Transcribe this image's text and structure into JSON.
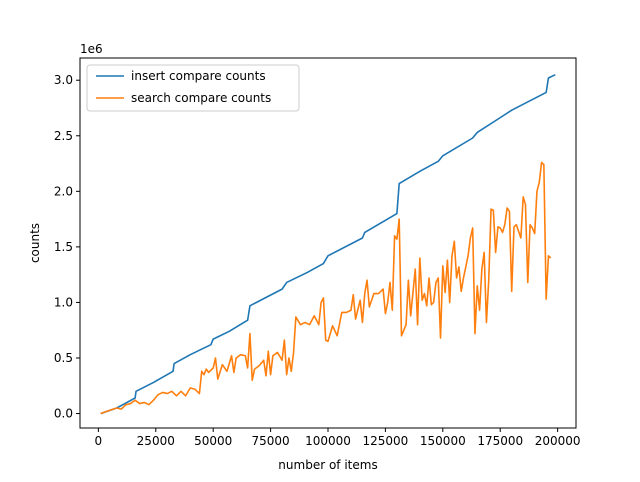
{
  "chart_data": {
    "type": "line",
    "xlabel": "number of items",
    "ylabel": "counts",
    "y_offset_label": "1e6",
    "xlim": [
      -8000,
      208000
    ],
    "ylim": [
      -0.13,
      3.2
    ],
    "x_ticks": [
      0,
      25000,
      50000,
      75000,
      100000,
      125000,
      150000,
      175000,
      200000
    ],
    "x_tick_labels": [
      "0",
      "25000",
      "50000",
      "75000",
      "100000",
      "125000",
      "150000",
      "175000",
      "200000"
    ],
    "y_ticks": [
      0.0,
      0.5,
      1.0,
      1.5,
      2.0,
      2.5,
      3.0
    ],
    "y_tick_labels": [
      "0.0",
      "0.5",
      "1.0",
      "1.5",
      "2.0",
      "2.5",
      "3.0"
    ],
    "legend_position": "top-left",
    "grid": false,
    "series": [
      {
        "name": "insert compare counts",
        "color": "#1f77b4",
        "points": [
          [
            1000,
            0.0
          ],
          [
            8000,
            0.05
          ],
          [
            16000,
            0.14
          ],
          [
            16400,
            0.2
          ],
          [
            24000,
            0.28
          ],
          [
            32500,
            0.38
          ],
          [
            33000,
            0.45
          ],
          [
            40000,
            0.53
          ],
          [
            49000,
            0.62
          ],
          [
            50000,
            0.67
          ],
          [
            57000,
            0.74
          ],
          [
            65000,
            0.84
          ],
          [
            66000,
            0.97
          ],
          [
            80000,
            1.12
          ],
          [
            82000,
            1.18
          ],
          [
            91000,
            1.27
          ],
          [
            98000,
            1.35
          ],
          [
            100000,
            1.42
          ],
          [
            115000,
            1.58
          ],
          [
            116000,
            1.63
          ],
          [
            130000,
            1.8
          ],
          [
            131000,
            2.07
          ],
          [
            140000,
            2.18
          ],
          [
            148000,
            2.27
          ],
          [
            150000,
            2.32
          ],
          [
            163000,
            2.48
          ],
          [
            165000,
            2.53
          ],
          [
            174000,
            2.65
          ],
          [
            180000,
            2.73
          ],
          [
            195000,
            2.89
          ],
          [
            196000,
            3.02
          ],
          [
            199000,
            3.05
          ]
        ]
      },
      {
        "name": "search compare counts",
        "color": "#ff7f0e",
        "points": [
          [
            1000,
            0.0
          ],
          [
            5000,
            0.03
          ],
          [
            8000,
            0.05
          ],
          [
            10000,
            0.04
          ],
          [
            12000,
            0.08
          ],
          [
            14000,
            0.09
          ],
          [
            16000,
            0.12
          ],
          [
            18000,
            0.09
          ],
          [
            20000,
            0.1
          ],
          [
            22000,
            0.08
          ],
          [
            24000,
            0.12
          ],
          [
            26000,
            0.17
          ],
          [
            28000,
            0.19
          ],
          [
            30000,
            0.18
          ],
          [
            32000,
            0.2
          ],
          [
            34000,
            0.16
          ],
          [
            36000,
            0.2
          ],
          [
            38000,
            0.16
          ],
          [
            40000,
            0.23
          ],
          [
            42000,
            0.22
          ],
          [
            44000,
            0.18
          ],
          [
            45000,
            0.38
          ],
          [
            46000,
            0.35
          ],
          [
            47000,
            0.4
          ],
          [
            48000,
            0.37
          ],
          [
            50000,
            0.41
          ],
          [
            51000,
            0.5
          ],
          [
            52000,
            0.31
          ],
          [
            54000,
            0.44
          ],
          [
            56000,
            0.38
          ],
          [
            58000,
            0.52
          ],
          [
            59000,
            0.37
          ],
          [
            60000,
            0.5
          ],
          [
            62000,
            0.53
          ],
          [
            64000,
            0.52
          ],
          [
            65000,
            0.41
          ],
          [
            66000,
            0.72
          ],
          [
            67000,
            0.3
          ],
          [
            68000,
            0.4
          ],
          [
            70000,
            0.43
          ],
          [
            72000,
            0.48
          ],
          [
            73000,
            0.34
          ],
          [
            74000,
            0.56
          ],
          [
            75000,
            0.35
          ],
          [
            76000,
            0.52
          ],
          [
            78000,
            0.55
          ],
          [
            80000,
            0.48
          ],
          [
            81000,
            0.66
          ],
          [
            82000,
            0.35
          ],
          [
            83000,
            0.5
          ],
          [
            84000,
            0.38
          ],
          [
            85000,
            0.55
          ],
          [
            86000,
            0.87
          ],
          [
            88000,
            0.8
          ],
          [
            90000,
            0.82
          ],
          [
            92000,
            0.8
          ],
          [
            94000,
            0.88
          ],
          [
            96000,
            0.8
          ],
          [
            97000,
            1.0
          ],
          [
            98000,
            1.04
          ],
          [
            99000,
            0.66
          ],
          [
            100000,
            0.65
          ],
          [
            102000,
            0.79
          ],
          [
            104000,
            0.7
          ],
          [
            106000,
            0.91
          ],
          [
            108000,
            0.91
          ],
          [
            110000,
            0.93
          ],
          [
            111000,
            1.07
          ],
          [
            112000,
            0.85
          ],
          [
            114000,
            1.02
          ],
          [
            115000,
            0.82
          ],
          [
            116000,
            1.08
          ],
          [
            117000,
            1.2
          ],
          [
            118000,
            0.96
          ],
          [
            120000,
            1.08
          ],
          [
            122000,
            1.08
          ],
          [
            124000,
            1.12
          ],
          [
            125000,
            0.9
          ],
          [
            126000,
            1.0
          ],
          [
            127000,
            1.18
          ],
          [
            128000,
            0.93
          ],
          [
            129000,
            1.6
          ],
          [
            130000,
            1.57
          ],
          [
            131000,
            1.75
          ],
          [
            132000,
            0.7
          ],
          [
            134000,
            0.8
          ],
          [
            135000,
            1.2
          ],
          [
            136000,
            0.88
          ],
          [
            138000,
            1.3
          ],
          [
            139000,
            0.8
          ],
          [
            140000,
            1.4
          ],
          [
            141000,
            1.02
          ],
          [
            142000,
            1.08
          ],
          [
            143000,
            0.97
          ],
          [
            144000,
            1.22
          ],
          [
            145000,
            0.98
          ],
          [
            146000,
            1.0
          ],
          [
            147000,
            1.18
          ],
          [
            148000,
            1.22
          ],
          [
            149000,
            0.68
          ],
          [
            150000,
            1.33
          ],
          [
            151000,
            1.09
          ],
          [
            152000,
            1.38
          ],
          [
            153000,
            1.0
          ],
          [
            154000,
            1.42
          ],
          [
            155000,
            1.55
          ],
          [
            156000,
            1.22
          ],
          [
            157000,
            1.32
          ],
          [
            158000,
            1.1
          ],
          [
            159000,
            1.22
          ],
          [
            160000,
            1.32
          ],
          [
            161000,
            1.42
          ],
          [
            162000,
            1.58
          ],
          [
            163000,
            1.67
          ],
          [
            164000,
            0.72
          ],
          [
            165000,
            1.15
          ],
          [
            166000,
            0.93
          ],
          [
            167000,
            1.3
          ],
          [
            168000,
            1.45
          ],
          [
            169000,
            0.82
          ],
          [
            170000,
            1.2
          ],
          [
            171000,
            1.84
          ],
          [
            172000,
            1.83
          ],
          [
            173000,
            1.45
          ],
          [
            174000,
            1.68
          ],
          [
            175000,
            1.67
          ],
          [
            176000,
            1.63
          ],
          [
            177000,
            1.7
          ],
          [
            178000,
            1.85
          ],
          [
            179000,
            1.82
          ],
          [
            180000,
            1.1
          ],
          [
            181000,
            1.68
          ],
          [
            182000,
            1.7
          ],
          [
            183000,
            1.64
          ],
          [
            184000,
            1.58
          ],
          [
            185000,
            1.95
          ],
          [
            186000,
            1.88
          ],
          [
            187000,
            1.18
          ],
          [
            188000,
            1.7
          ],
          [
            189000,
            1.67
          ],
          [
            190000,
            1.62
          ],
          [
            191000,
            2.0
          ],
          [
            192000,
            2.08
          ],
          [
            193000,
            2.26
          ],
          [
            194000,
            2.24
          ],
          [
            195000,
            1.03
          ],
          [
            196000,
            1.42
          ],
          [
            197000,
            1.4
          ]
        ]
      }
    ]
  }
}
